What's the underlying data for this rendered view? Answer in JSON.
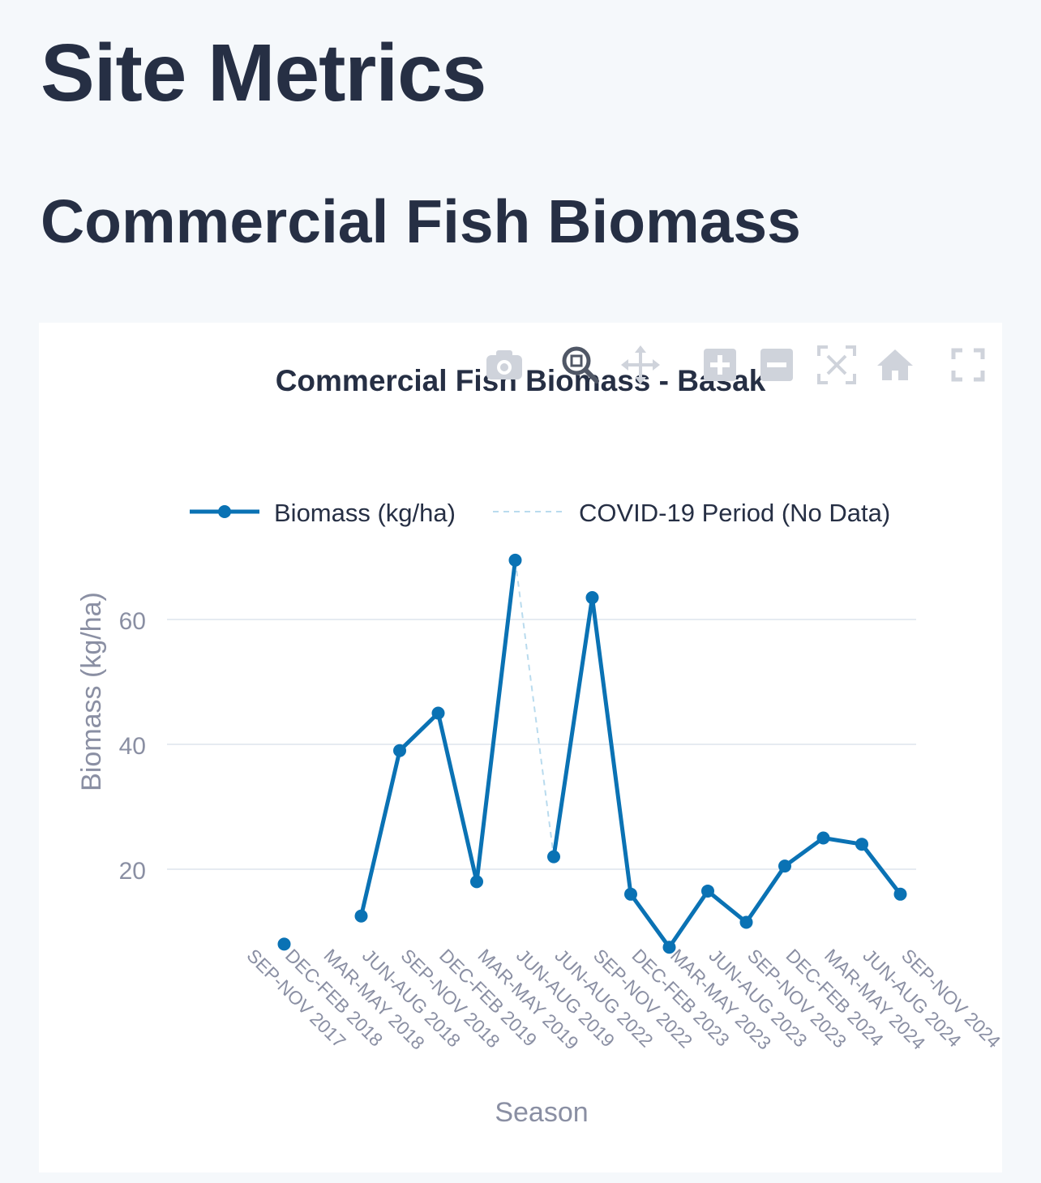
{
  "page": {
    "title": "Site Metrics"
  },
  "section": {
    "title": "Commercial Fish Biomass"
  },
  "modebar": {
    "buttons": [
      {
        "icon": "camera-icon"
      },
      {
        "icon": "zoom-icon"
      },
      {
        "icon": "pan-icon"
      },
      {
        "icon": "zoom-in-icon"
      },
      {
        "icon": "zoom-out-icon"
      },
      {
        "icon": "autoscale-icon"
      },
      {
        "icon": "home-icon"
      },
      {
        "icon": "fullscreen-icon"
      }
    ]
  },
  "colors": {
    "series": "#0a72b4",
    "covid": "#b9dbee",
    "grid": "#e6ebf1",
    "axis_text": "#8a8fa3",
    "title": "#262f44"
  },
  "chart_data": {
    "type": "line",
    "title": "Commercial Fish Biomass - Basak",
    "xlabel": "Season",
    "ylabel": "Biomass (kg/ha)",
    "ylim": [
      0,
      70
    ],
    "yticks": [
      20,
      40,
      60
    ],
    "grid": true,
    "legend_position": "top",
    "categories": [
      "SEP-NOV 2017",
      "DEC-FEB 2018",
      "MAR-MAY 2018",
      "JUN-AUG 2018",
      "SEP-NOV 2018",
      "DEC-FEB 2019",
      "MAR-MAY 2019",
      "JUN-AUG 2019",
      "JUN-AUG 2022",
      "SEP-NOV 2022",
      "DEC-FEB 2023",
      "MAR-MAY 2023",
      "JUN-AUG 2023",
      "SEP-NOV 2023",
      "DEC-FEB 2024",
      "MAR-MAY 2024",
      "JUN-AUG 2024",
      "SEP-NOV 2024"
    ],
    "series": [
      {
        "name": "Biomass (kg/ha)",
        "points": [
          {
            "x": "DEC-FEB 2018",
            "y": 8
          },
          {
            "x": "JUN-AUG 2018",
            "y": 12.5
          },
          {
            "x": "SEP-NOV 2018",
            "y": 39
          },
          {
            "x": "DEC-FEB 2019",
            "y": 45
          },
          {
            "x": "MAR-MAY 2019",
            "y": 18
          },
          {
            "x": "JUN-AUG 2019",
            "y": 69.5
          },
          {
            "x": "JUN-AUG 2022",
            "y": 22
          },
          {
            "x": "SEP-NOV 2022",
            "y": 63.5
          },
          {
            "x": "DEC-FEB 2023",
            "y": 16
          },
          {
            "x": "MAR-MAY 2023",
            "y": 7.5
          },
          {
            "x": "JUN-AUG 2023",
            "y": 16.5
          },
          {
            "x": "SEP-NOV 2023",
            "y": 11.5
          },
          {
            "x": "DEC-FEB 2024",
            "y": 20.5
          },
          {
            "x": "MAR-MAY 2024",
            "y": 25
          },
          {
            "x": "JUN-AUG 2024",
            "y": 24
          },
          {
            "x": "SEP-NOV 2024",
            "y": 16
          }
        ]
      },
      {
        "name": "COVID-19 Period (No Data)",
        "style": "dashed",
        "points": [
          {
            "x": "JUN-AUG 2019",
            "y": 69.5
          },
          {
            "x": "JUN-AUG 2022",
            "y": 22
          }
        ]
      }
    ]
  }
}
